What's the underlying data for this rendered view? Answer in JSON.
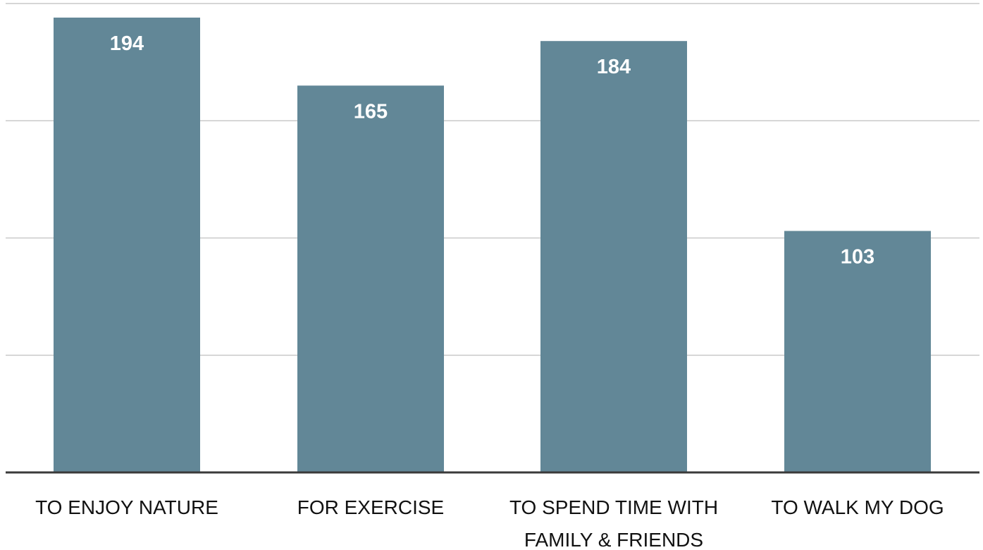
{
  "chart_data": {
    "type": "bar",
    "categories": [
      [
        "TO ENJOY NATURE"
      ],
      [
        "FOR EXERCISE"
      ],
      [
        "TO SPEND TIME WITH",
        "FAMILY & FRIENDS"
      ],
      [
        "TO WALK MY DOG"
      ]
    ],
    "values": [
      194,
      165,
      184,
      103
    ],
    "data_labels": [
      "194",
      "165",
      "184",
      "103"
    ],
    "title": "",
    "xlabel": "",
    "ylabel": "",
    "ylim": [
      0,
      200
    ],
    "grid_values": [
      50,
      100,
      150,
      200
    ],
    "grid": true,
    "legend": "none",
    "colors": {
      "bar": "#628797",
      "label": "#ffffff",
      "gridline": "#c9c9c9",
      "baseline": "#3a3a3a",
      "tick_text": "#111111"
    }
  }
}
